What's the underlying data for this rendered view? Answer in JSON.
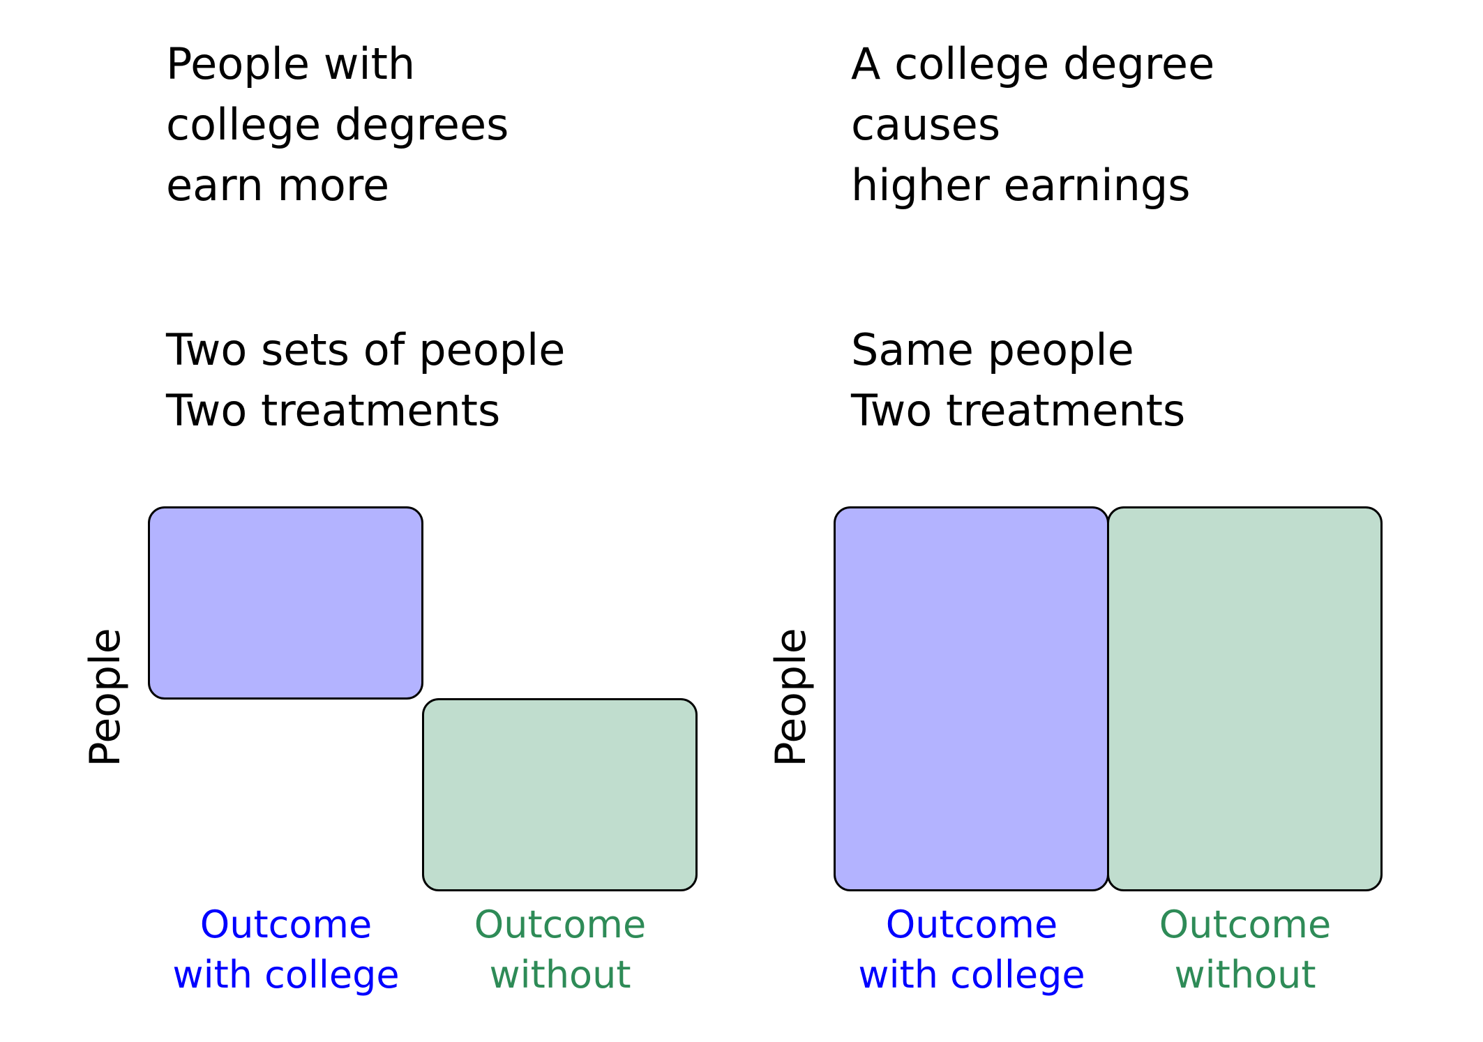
{
  "colors": {
    "with_college": "#0000ff",
    "without": "#2e8b57",
    "with_college_fill": "#b3b3ff",
    "without_fill": "#c0ddce"
  },
  "left": {
    "claim": [
      "People with",
      "college degrees",
      "earn more"
    ],
    "subtitle": [
      "Two sets of people",
      "Two treatments"
    ],
    "axis_label": "People",
    "outcome_with": [
      "Outcome",
      "with college"
    ],
    "outcome_without": [
      "Outcome",
      "without"
    ]
  },
  "right": {
    "claim": [
      "A college degree",
      "causes",
      "higher earnings"
    ],
    "subtitle": [
      "Same people",
      "Two treatments"
    ],
    "axis_label": "People",
    "outcome_with": [
      "Outcome",
      "with college"
    ],
    "outcome_without": [
      "Outcome",
      "without"
    ]
  }
}
